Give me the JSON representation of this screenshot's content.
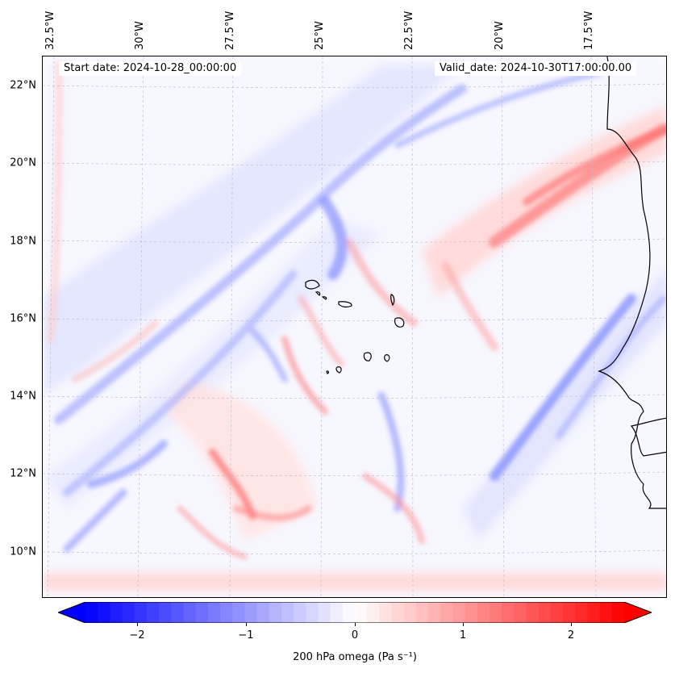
{
  "map": {
    "title_left": "Start date: 2024-10-28_00:00:00",
    "title_right": "Valid_date: 2024-10-30T17:00:00.00",
    "lon_labels": [
      "32.5°W",
      "30°W",
      "27.5°W",
      "25°W",
      "22.5°W",
      "20°W",
      "17.5°W"
    ],
    "lat_labels": [
      "22°N",
      "20°N",
      "18°N",
      "16°N",
      "14°N",
      "12°N",
      "10°N"
    ],
    "field": "200 hPa omega",
    "region": "Cabo Verde / West Africa coast",
    "colors": {
      "negative": "#0000ff",
      "zero": "#ffffff",
      "positive": "#ff0000",
      "coast": "#000000"
    }
  },
  "colorbar": {
    "label": "200 hPa omega (Pa s⁻¹)",
    "ticks": [
      "−2",
      "−1",
      "0",
      "1",
      "2"
    ],
    "tick_values": [
      -2,
      -1,
      0,
      1,
      2
    ],
    "vmin": -2.75,
    "vmax": 2.75
  }
}
